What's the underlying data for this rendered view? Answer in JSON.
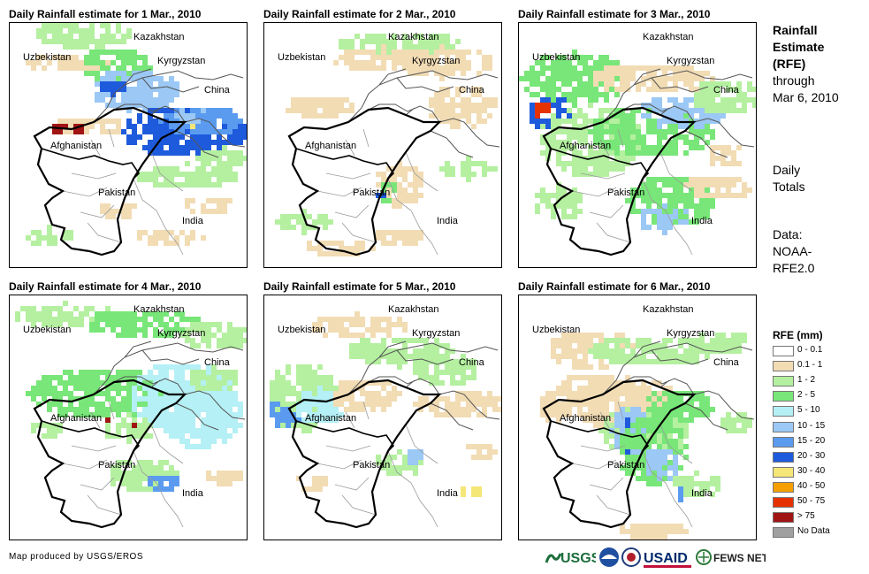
{
  "panels": [
    {
      "title": "Daily Rainfall estimate for 1 Mar., 2010"
    },
    {
      "title": "Daily Rainfall estimate for 2 Mar., 2010"
    },
    {
      "title": "Daily Rainfall estimate for 3 Mar., 2010"
    },
    {
      "title": "Daily Rainfall estimate for 4 Mar., 2010"
    },
    {
      "title": "Daily Rainfall estimate for 5 Mar., 2010"
    },
    {
      "title": "Daily Rainfall estimate for 6 Mar., 2010"
    }
  ],
  "countries": {
    "kazakhstan": "Kazakhstan",
    "uzbekistan": "Uzbekistan",
    "kyrgyzstan": "Kyrgyzstan",
    "china": "China",
    "afghanistan": "Afghanistan",
    "pakistan": "Pakistan",
    "india": "India"
  },
  "side": {
    "title_line1": "Rainfall",
    "title_line2": "Estimate",
    "title_line3": "(RFE)",
    "through": "through",
    "date": "Mar 6, 2010",
    "daily_line1": "Daily",
    "daily_line2": "Totals",
    "data_line1": "Data:",
    "data_line2": "NOAA-",
    "data_line3": "RFE2.0"
  },
  "legend": {
    "title": "RFE (mm)",
    "items": [
      {
        "label": "0 - 0.1",
        "color": "#ffffff"
      },
      {
        "label": "0.1 - 1",
        "color": "#f2dcb4"
      },
      {
        "label": "1 - 2",
        "color": "#b4f0a0"
      },
      {
        "label": "2 - 5",
        "color": "#78e678"
      },
      {
        "label": "5 - 10",
        "color": "#b4f0f5"
      },
      {
        "label": "10 - 15",
        "color": "#9bc8f5"
      },
      {
        "label": "15 - 20",
        "color": "#5a9bf0"
      },
      {
        "label": "20 - 30",
        "color": "#1e5adc"
      },
      {
        "label": "30 - 40",
        "color": "#f5e678"
      },
      {
        "label": "40 - 50",
        "color": "#f5a000"
      },
      {
        "label": "50 - 75",
        "color": "#e63200"
      },
      {
        "label": "> 75",
        "color": "#a01414"
      },
      {
        "label": "No Data",
        "color": "#a0a0a0"
      }
    ]
  },
  "credit": "Map produced by USGS/EROS",
  "logos": {
    "usgs": "USGS",
    "usaid": "USAID",
    "fewsnet": "FEWS NET"
  }
}
